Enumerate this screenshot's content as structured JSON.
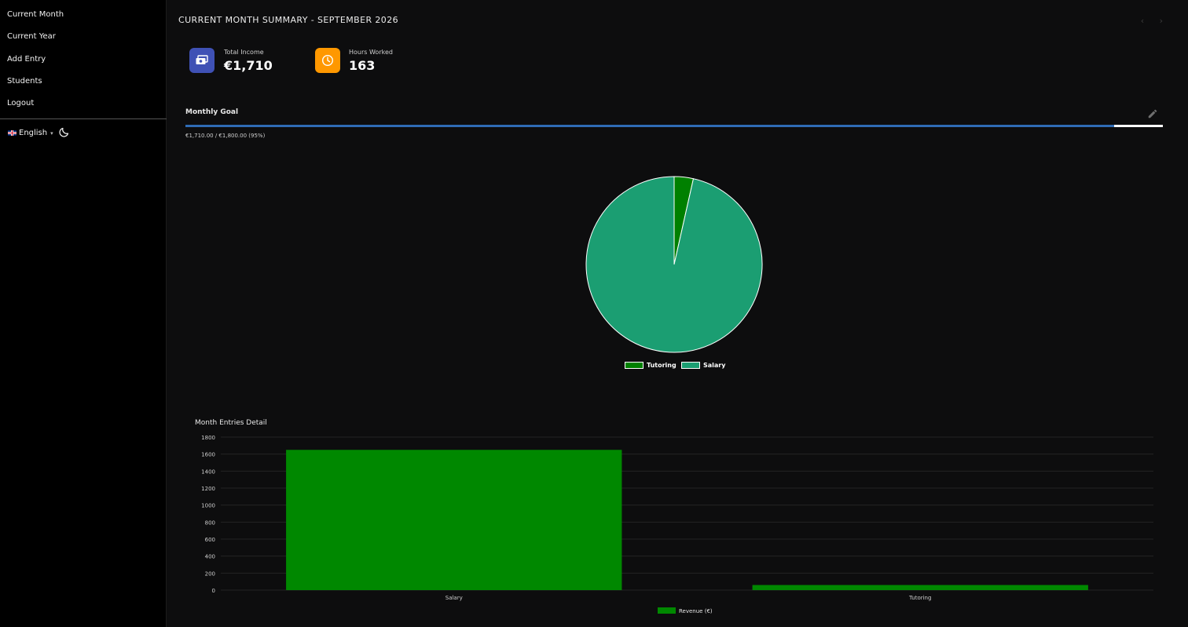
{
  "sidebar": {
    "items": [
      {
        "label": "Current Month"
      },
      {
        "label": "Current Year"
      },
      {
        "label": "Add Entry"
      },
      {
        "label": "Students"
      },
      {
        "label": "Logout"
      }
    ],
    "language": "English",
    "language_icon": "uk-flag-icon",
    "theme_icon": "moon-icon"
  },
  "header": {
    "title": "CURRENT MONTH SUMMARY - SEPTEMBER 2026",
    "prev_icon": "‹",
    "next_icon": "›"
  },
  "stats": {
    "income": {
      "label": "Total Income",
      "value": "€1,710",
      "icon": "cash-icon",
      "color": "#3f51b5"
    },
    "hours": {
      "label": "Hours Worked",
      "value": "163",
      "icon": "clock-icon",
      "color": "#ff9800"
    }
  },
  "goal": {
    "label": "Monthly Goal",
    "text": "€1,710.00 / €1,800.00 (95%)",
    "progress": 0.95,
    "edit_icon": "pencil-icon",
    "fill_color": "#2f6bb5"
  },
  "chart_data": [
    {
      "type": "pie",
      "labels": [
        "Tutoring",
        "Salary"
      ],
      "values": [
        60,
        1650
      ],
      "colors": [
        "#008000",
        "#1b9e72"
      ]
    },
    {
      "type": "bar",
      "title": "Month Entries Detail",
      "categories": [
        "Salary",
        "Tutoring"
      ],
      "series": [
        {
          "name": "Revenue (€)",
          "values": [
            1650,
            60
          ],
          "color": "#008800"
        }
      ],
      "ylim": [
        0,
        1800
      ],
      "yticks": [
        0,
        200,
        400,
        600,
        800,
        1000,
        1200,
        1400,
        1600,
        1800
      ],
      "grid": true,
      "legend": "bottom"
    }
  ]
}
